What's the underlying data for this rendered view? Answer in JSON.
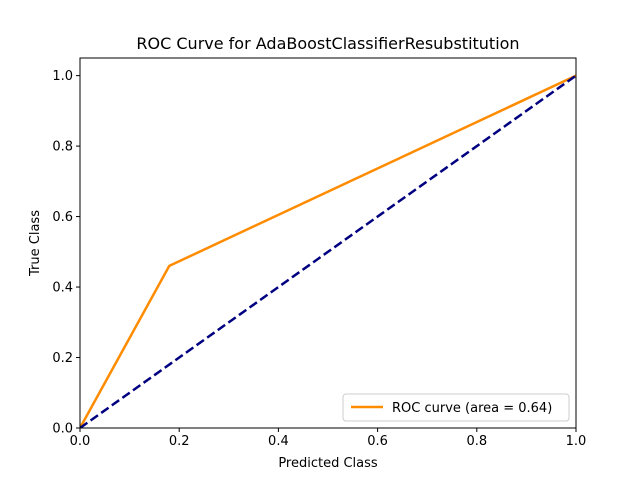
{
  "chart_data": {
    "type": "line",
    "title": "ROC Curve for AdaBoostClassifierResubstitution",
    "xlabel": "Predicted Class",
    "ylabel": "True Class",
    "xlim": [
      0.0,
      1.0
    ],
    "ylim": [
      0.0,
      1.05
    ],
    "xticks": [
      0.0,
      0.2,
      0.4,
      0.6,
      0.8,
      1.0
    ],
    "yticks": [
      0.0,
      0.2,
      0.4,
      0.6,
      0.8,
      1.0
    ],
    "xtick_labels": [
      "0.0",
      "0.2",
      "0.4",
      "0.6",
      "0.8",
      "1.0"
    ],
    "ytick_labels": [
      "0.0",
      "0.2",
      "0.4",
      "0.6",
      "0.8",
      "1.0"
    ],
    "grid": false,
    "legend_position": "lower-right",
    "series": [
      {
        "name": "ROC curve (area = 0.64)",
        "color": "#ff8c00",
        "style": "solid",
        "x": [
          0.0,
          0.18,
          1.0
        ],
        "y": [
          0.0,
          0.46,
          1.0
        ]
      },
      {
        "color": "#000080",
        "style": "dashed",
        "x": [
          0.0,
          1.0
        ],
        "y": [
          0.0,
          1.0
        ]
      }
    ]
  }
}
